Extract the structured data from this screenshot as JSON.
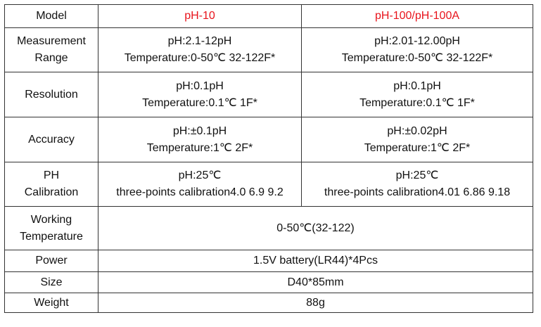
{
  "table": {
    "header": [
      "Model",
      "pH-10",
      "pH-100/pH-100A"
    ],
    "rows": [
      [
        [
          "Measurement",
          "Range"
        ],
        [
          "pH:2.1-12pH",
          "Temperature:0-50℃ 32-122F*"
        ],
        [
          "pH:2.01-12.00pH",
          "Temperature:0-50℃ 32-122F*"
        ]
      ],
      [
        [
          "Resolution"
        ],
        [
          "pH:0.1pH",
          "Temperature:0.1℃ 1F*"
        ],
        [
          "pH:0.1pH",
          "Temperature:0.1℃ 1F*"
        ]
      ],
      [
        [
          "Accuracy"
        ],
        [
          "pH:±0.1pH",
          "Temperature:1℃ 2F*"
        ],
        [
          "pH:±0.02pH",
          "Temperature:1℃ 2F*"
        ]
      ],
      [
        [
          "PH",
          "Calibration"
        ],
        [
          "pH:25℃",
          "three-points calibration4.0 6.9 9.2"
        ],
        [
          "pH:25℃",
          "three-points calibration4.01 6.86 9.18"
        ]
      ],
      [
        [
          "Working",
          "Temperature"
        ],
        [
          "0-50℃(32-122)"
        ]
      ],
      [
        [
          "Power"
        ],
        [
          "1.5V battery(LR44)*4Pcs"
        ]
      ],
      [
        [
          "Size"
        ],
        [
          "D40*85mm"
        ]
      ],
      [
        [
          "Weight"
        ],
        [
          "88g"
        ]
      ]
    ]
  }
}
